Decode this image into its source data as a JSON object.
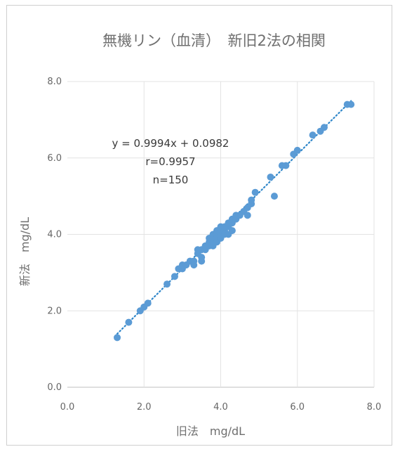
{
  "chart_data": {
    "type": "scatter",
    "title": "無機リン（血清）　新旧2法の相関",
    "xlabel": "旧法　mg/dL",
    "ylabel": "新法　mg/dL",
    "xlim": [
      0,
      8
    ],
    "ylim": [
      0,
      8
    ],
    "xticks": [
      "0.0",
      "2.0",
      "4.0",
      "6.0",
      "8.0"
    ],
    "yticks": [
      "0.0",
      "2.0",
      "4.0",
      "6.0",
      "8.0"
    ],
    "grid": true,
    "legend": "none",
    "annotations": [
      "y = 0.9994x + 0.0982",
      "r=0.9957",
      "n=150"
    ],
    "trendline": {
      "slope": 0.9994,
      "intercept": 0.0982,
      "x_range": [
        1.3,
        7.4
      ],
      "style": "dotted"
    },
    "marker_color": "#5b9bd5",
    "points": [
      [
        1.3,
        1.3
      ],
      [
        1.6,
        1.7
      ],
      [
        1.9,
        2.0
      ],
      [
        2.0,
        2.1
      ],
      [
        2.1,
        2.2
      ],
      [
        2.6,
        2.7
      ],
      [
        2.8,
        2.9
      ],
      [
        2.9,
        3.1
      ],
      [
        3.0,
        3.1
      ],
      [
        3.0,
        3.2
      ],
      [
        3.1,
        3.2
      ],
      [
        3.2,
        3.3
      ],
      [
        3.3,
        3.3
      ],
      [
        3.3,
        3.2
      ],
      [
        3.4,
        3.5
      ],
      [
        3.4,
        3.6
      ],
      [
        3.5,
        3.4
      ],
      [
        3.5,
        3.3
      ],
      [
        3.5,
        3.6
      ],
      [
        3.6,
        3.6
      ],
      [
        3.6,
        3.7
      ],
      [
        3.7,
        3.7
      ],
      [
        3.7,
        3.8
      ],
      [
        3.7,
        3.9
      ],
      [
        3.8,
        3.8
      ],
      [
        3.8,
        3.7
      ],
      [
        3.8,
        3.9
      ],
      [
        3.8,
        4.0
      ],
      [
        3.9,
        3.9
      ],
      [
        3.9,
        4.0
      ],
      [
        3.9,
        3.8
      ],
      [
        3.9,
        4.1
      ],
      [
        4.0,
        4.0
      ],
      [
        4.0,
        4.1
      ],
      [
        4.0,
        3.9
      ],
      [
        4.0,
        4.2
      ],
      [
        4.1,
        4.1
      ],
      [
        4.1,
        4.0
      ],
      [
        4.1,
        4.2
      ],
      [
        4.2,
        4.2
      ],
      [
        4.2,
        4.3
      ],
      [
        4.2,
        4.0
      ],
      [
        4.3,
        4.3
      ],
      [
        4.3,
        4.4
      ],
      [
        4.3,
        4.1
      ],
      [
        4.4,
        4.4
      ],
      [
        4.4,
        4.5
      ],
      [
        4.5,
        4.5
      ],
      [
        4.6,
        4.6
      ],
      [
        4.7,
        4.7
      ],
      [
        4.7,
        4.5
      ],
      [
        4.8,
        4.8
      ],
      [
        4.8,
        4.9
      ],
      [
        4.9,
        5.1
      ],
      [
        5.3,
        5.5
      ],
      [
        5.4,
        5.0
      ],
      [
        5.6,
        5.8
      ],
      [
        5.7,
        5.8
      ],
      [
        5.9,
        6.1
      ],
      [
        6.0,
        6.2
      ],
      [
        6.4,
        6.6
      ],
      [
        6.6,
        6.7
      ],
      [
        6.7,
        6.8
      ],
      [
        7.3,
        7.4
      ],
      [
        7.4,
        7.4
      ]
    ]
  }
}
